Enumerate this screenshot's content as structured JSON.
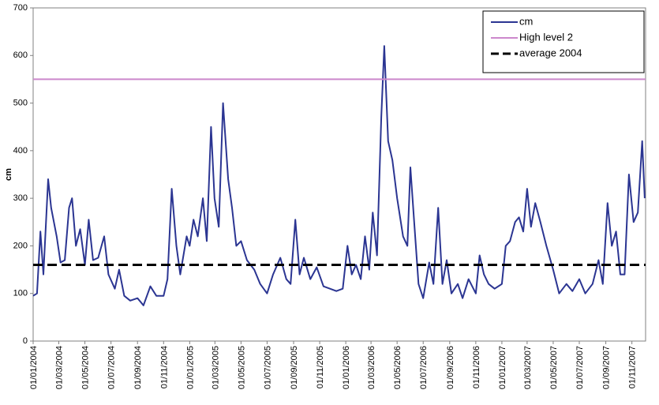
{
  "chart_data": {
    "type": "line",
    "y_label": "cm",
    "xlim": [
      "01/01/2004",
      "03/12/2007"
    ],
    "xticks": [
      "01/01/2004",
      "01/03/2004",
      "01/05/2004",
      "01/07/2004",
      "01/09/2004",
      "01/11/2004",
      "01/01/2005",
      "01/03/2005",
      "01/05/2005",
      "01/07/2005",
      "01/09/2005",
      "01/11/2005",
      "01/01/2006",
      "01/03/2006",
      "01/05/2006",
      "01/07/2006",
      "01/09/2006",
      "01/11/2006",
      "01/01/2007",
      "01/03/2007",
      "01/05/2007",
      "01/07/2007",
      "01/09/2007",
      "01/11/2007"
    ],
    "ylim": [
      0,
      700
    ],
    "yticks": [
      0,
      100,
      200,
      300,
      400,
      500,
      600,
      700
    ],
    "x": [
      "01/01/2004",
      "10/01/2004",
      "18/01/2004",
      "25/01/2004",
      "05/02/2004",
      "12/02/2004",
      "25/02/2004",
      "05/03/2004",
      "15/03/2004",
      "25/03/2004",
      "01/04/2004",
      "10/04/2004",
      "20/04/2004",
      "01/05/2004",
      "10/05/2004",
      "20/05/2004",
      "01/06/2004",
      "15/06/2004",
      "25/06/2004",
      "10/07/2004",
      "20/07/2004",
      "01/08/2004",
      "15/08/2004",
      "01/09/2004",
      "15/09/2004",
      "01/10/2004",
      "15/10/2004",
      "01/11/2004",
      "10/11/2004",
      "20/11/2004",
      "01/12/2004",
      "10/12/2004",
      "25/12/2004",
      "01/01/2005",
      "10/01/2005",
      "20/01/2005",
      "01/02/2005",
      "10/02/2005",
      "20/02/2005",
      "28/02/2005",
      "10/03/2005",
      "20/03/2005",
      "01/04/2005",
      "10/04/2005",
      "20/04/2005",
      "01/05/2005",
      "15/05/2005",
      "01/06/2005",
      "15/06/2005",
      "01/07/2005",
      "15/07/2005",
      "01/08/2005",
      "15/08/2005",
      "25/08/2005",
      "05/09/2005",
      "15/09/2005",
      "25/09/2005",
      "10/10/2005",
      "25/10/2005",
      "10/11/2005",
      "25/11/2005",
      "10/12/2005",
      "25/12/2005",
      "05/01/2006",
      "15/01/2006",
      "25/01/2006",
      "05/02/2006",
      "15/02/2006",
      "25/02/2006",
      "05/03/2006",
      "15/03/2006",
      "25/03/2006",
      "01/04/2006",
      "10/04/2006",
      "20/04/2006",
      "01/05/2006",
      "15/05/2006",
      "25/05/2006",
      "01/06/2006",
      "10/06/2006",
      "20/06/2006",
      "01/07/2006",
      "15/07/2006",
      "25/07/2006",
      "05/08/2006",
      "15/08/2006",
      "25/08/2006",
      "05/09/2006",
      "20/09/2006",
      "01/10/2006",
      "15/10/2006",
      "01/11/2006",
      "10/11/2006",
      "20/11/2006",
      "01/12/2006",
      "15/12/2006",
      "01/01/2007",
      "10/01/2007",
      "20/01/2007",
      "01/02/2007",
      "10/02/2007",
      "20/02/2007",
      "01/03/2007",
      "10/03/2007",
      "20/03/2007",
      "01/04/2007",
      "15/04/2007",
      "01/05/2007",
      "15/05/2007",
      "01/06/2007",
      "15/06/2007",
      "01/07/2007",
      "15/07/2007",
      "01/08/2007",
      "15/08/2007",
      "25/08/2007",
      "05/09/2007",
      "15/09/2007",
      "25/09/2007",
      "05/10/2007",
      "15/10/2007",
      "25/10/2007",
      "05/11/2007",
      "15/11/2007",
      "25/11/2007",
      "01/12/2007"
    ],
    "series": [
      {
        "name": "cm",
        "color": "#2b3592",
        "values": [
          95,
          100,
          230,
          140,
          340,
          280,
          220,
          165,
          170,
          280,
          300,
          200,
          235,
          160,
          255,
          170,
          175,
          220,
          140,
          110,
          150,
          95,
          85,
          90,
          75,
          115,
          95,
          95,
          130,
          320,
          200,
          140,
          220,
          200,
          255,
          220,
          300,
          210,
          450,
          300,
          240,
          500,
          340,
          280,
          200,
          210,
          170,
          150,
          120,
          100,
          140,
          175,
          130,
          120,
          255,
          140,
          175,
          130,
          155,
          115,
          110,
          105,
          110,
          200,
          140,
          160,
          130,
          220,
          150,
          270,
          180,
          470,
          620,
          420,
          380,
          300,
          220,
          200,
          365,
          250,
          120,
          90,
          165,
          120,
          280,
          120,
          170,
          100,
          120,
          90,
          130,
          100,
          180,
          140,
          120,
          110,
          120,
          200,
          210,
          250,
          260,
          230,
          320,
          240,
          290,
          250,
          200,
          150,
          100,
          120,
          105,
          130,
          100,
          120,
          170,
          120,
          290,
          200,
          230,
          140,
          140,
          350,
          250,
          270,
          420,
          300
        ]
      }
    ],
    "reference_lines": [
      {
        "name": "High level 2",
        "color": "#cc88cc",
        "value": 550,
        "dashed": false
      },
      {
        "name": "average 2004",
        "color": "#000000",
        "value": 160,
        "dashed": true
      }
    ],
    "legend": "top-right"
  }
}
